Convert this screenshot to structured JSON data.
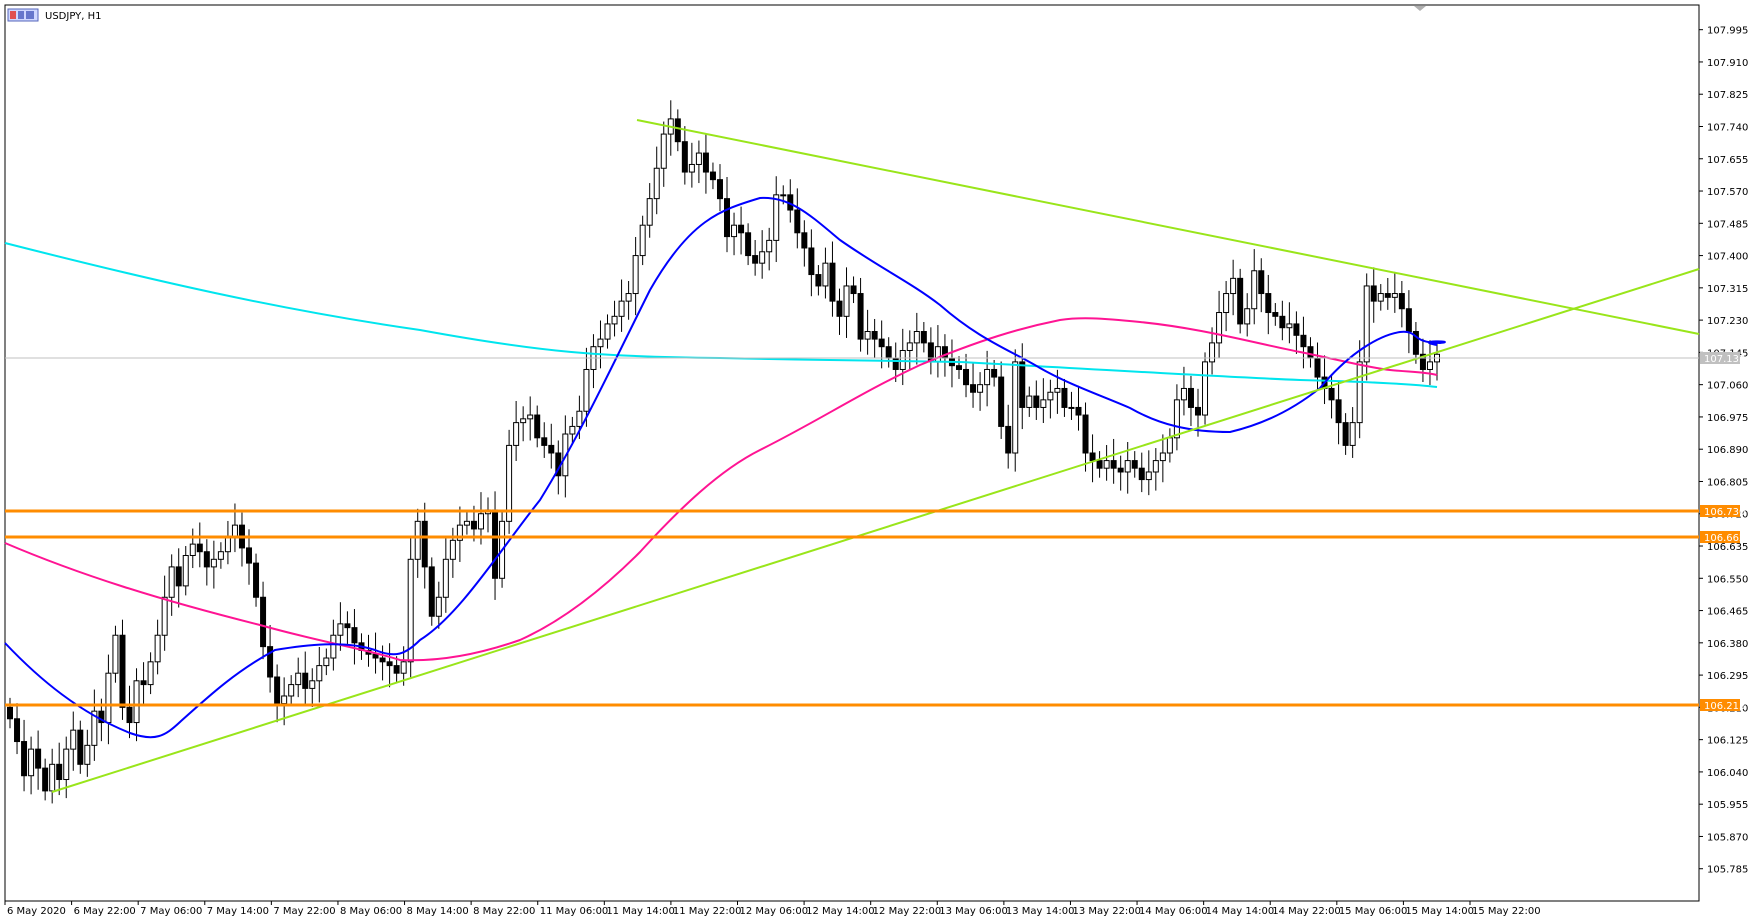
{
  "symbol_title": "USDJPY, H1",
  "chart_data": {
    "type": "candlestick",
    "title": "USDJPY, H1",
    "ylim": [
      105.7,
      108.06
    ],
    "y_ticks": [
      "107.995",
      "107.910",
      "107.825",
      "107.740",
      "107.655",
      "107.570",
      "107.485",
      "107.400",
      "107.315",
      "107.230",
      "107.145",
      "107.060",
      "106.975",
      "106.890",
      "106.805",
      "106.720",
      "106.635",
      "106.550",
      "106.465",
      "106.380",
      "106.295",
      "106.210",
      "106.125",
      "106.040",
      "105.955",
      "105.870",
      "105.785"
    ],
    "x_labels": [
      "6 May 2020",
      "6 May 22:00",
      "7 May 06:00",
      "7 May 14:00",
      "7 May 22:00",
      "8 May 06:00",
      "8 May 14:00",
      "8 May 22:00",
      "11 May 06:00",
      "11 May 14:00",
      "11 May 22:00",
      "12 May 06:00",
      "12 May 14:00",
      "12 May 22:00",
      "13 May 06:00",
      "13 May 14:00",
      "13 May 22:00",
      "14 May 06:00",
      "14 May 14:00",
      "14 May 22:00",
      "15 May 06:00",
      "15 May 14:00",
      "15 May 22:00"
    ],
    "candle_spacing_bars": 1,
    "candle_closes": [
      106.18,
      106.12,
      106.03,
      106.1,
      106.05,
      105.99,
      106.06,
      106.02,
      106.1,
      106.15,
      106.06,
      106.11,
      106.2,
      106.17,
      106.3,
      106.4,
      106.21,
      106.17,
      106.28,
      106.27,
      106.33,
      106.4,
      106.5,
      106.58,
      106.53,
      106.61,
      106.64,
      106.62,
      106.58,
      106.6,
      106.62,
      106.66,
      106.69,
      106.63,
      106.59,
      106.5,
      106.37,
      106.29,
      106.22,
      106.24,
      106.27,
      106.3,
      106.26,
      106.28,
      106.32,
      106.34,
      106.4,
      106.43,
      106.42,
      106.38,
      106.36,
      106.35,
      106.34,
      106.33,
      106.32,
      106.3,
      106.33,
      106.6,
      106.7,
      106.58,
      106.45,
      106.5,
      106.6,
      106.65,
      106.69,
      106.7,
      106.68,
      106.72,
      106.73,
      106.55,
      106.7,
      106.9,
      106.96,
      106.97,
      106.98,
      106.92,
      106.9,
      106.88,
      106.82,
      106.93,
      106.95,
      106.99,
      107.1,
      107.16,
      107.18,
      107.22,
      107.24,
      107.28,
      107.3,
      107.4,
      107.48,
      107.55,
      107.63,
      107.72,
      107.76,
      107.7,
      107.62,
      107.64,
      107.67,
      107.62,
      107.6,
      107.55,
      107.45,
      107.48,
      107.46,
      107.4,
      107.38,
      107.41,
      107.44,
      107.56,
      107.56,
      107.52,
      107.46,
      107.42,
      107.35,
      107.32,
      107.38,
      107.28,
      107.24,
      107.32,
      107.3,
      107.18,
      107.2,
      107.18,
      107.16,
      107.13,
      107.1,
      107.15,
      107.17,
      107.2,
      107.17,
      107.12,
      107.16,
      107.13,
      107.11,
      107.1,
      107.06,
      107.04,
      107.06,
      107.1,
      107.08,
      106.95,
      106.88,
      107.12,
      107.0,
      107.03,
      107.0,
      107.02,
      107.04,
      107.05,
      107.0,
      107.0,
      106.98,
      106.88,
      106.86,
      106.84,
      106.86,
      106.84,
      106.83,
      106.86,
      106.84,
      106.81,
      106.83,
      106.86,
      106.88,
      106.92,
      107.02,
      107.05,
      107.0,
      106.98,
      107.12,
      107.17,
      107.25,
      107.3,
      107.34,
      107.22,
      107.26,
      107.36,
      107.3,
      107.25,
      107.24,
      107.21,
      107.22,
      107.19,
      107.16,
      107.13,
      107.08,
      107.05,
      107.02,
      106.96,
      106.9,
      106.96,
      107.12,
      107.32,
      107.28,
      107.3,
      107.29,
      107.3,
      107.26,
      107.2,
      107.14,
      107.1,
      107.12,
      107.14
    ]
  }
}
